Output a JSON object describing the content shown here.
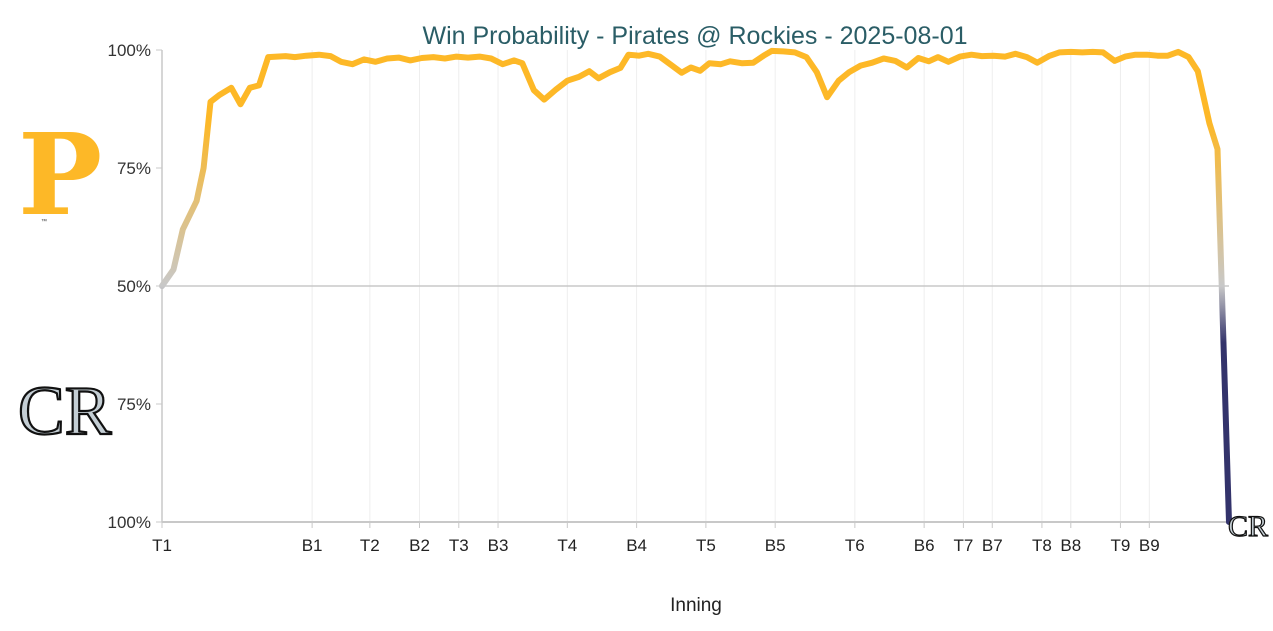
{
  "chart_data": {
    "type": "line",
    "title": "Win Probability - Pirates @ Rockies - 2025-08-01",
    "xlabel": "Inning",
    "ylabel": "",
    "y_tick_labels": [
      "100%",
      "75%",
      "50%",
      "75%",
      "100%"
    ],
    "ylim": [
      -50,
      50
    ],
    "x_tick_labels": [
      {
        "label": "T1",
        "x": 0
      },
      {
        "label": "B1",
        "x": 13
      },
      {
        "label": "T2",
        "x": 18
      },
      {
        "label": "B2",
        "x": 22.3
      },
      {
        "label": "T3",
        "x": 25.7
      },
      {
        "label": "B3",
        "x": 29.1
      },
      {
        "label": "T4",
        "x": 35.1
      },
      {
        "label": "B4",
        "x": 41.1
      },
      {
        "label": "T5",
        "x": 47.1
      },
      {
        "label": "B5",
        "x": 53.1
      },
      {
        "label": "T6",
        "x": 60
      },
      {
        "label": "B6",
        "x": 66
      },
      {
        "label": "T7",
        "x": 69.4
      },
      {
        "label": "B7",
        "x": 71.9
      },
      {
        "label": "T8",
        "x": 76.2
      },
      {
        "label": "B8",
        "x": 78.7
      },
      {
        "label": "T9",
        "x": 83
      },
      {
        "label": "B9",
        "x": 85.5
      }
    ],
    "xlim": [
      0,
      90
    ],
    "grid": "vertical",
    "series": [
      {
        "values": [
          [
            0,
            0
          ],
          [
            1,
            3.5
          ],
          [
            1.8,
            12
          ],
          [
            3,
            18
          ],
          [
            3.6,
            25
          ],
          [
            4.2,
            39
          ],
          [
            5,
            40.5
          ],
          [
            6,
            42
          ],
          [
            6.8,
            38.5
          ],
          [
            7.6,
            42
          ],
          [
            8.4,
            42.5
          ],
          [
            9.2,
            48.5
          ],
          [
            10.7,
            48.7
          ],
          [
            11.5,
            48.5
          ],
          [
            12.5,
            48.8
          ],
          [
            13.6,
            49
          ],
          [
            14.6,
            48.7
          ],
          [
            15.5,
            47.5
          ],
          [
            16.5,
            47
          ],
          [
            17.5,
            48
          ],
          [
            18.5,
            47.5
          ],
          [
            19.5,
            48.2
          ],
          [
            20.5,
            48.4
          ],
          [
            21.5,
            47.8
          ],
          [
            22.5,
            48.3
          ],
          [
            23.5,
            48.5
          ],
          [
            24.5,
            48.2
          ],
          [
            25.5,
            48.6
          ],
          [
            26.5,
            48.4
          ],
          [
            27.5,
            48.6
          ],
          [
            28.5,
            48.2
          ],
          [
            29.5,
            47
          ],
          [
            30.5,
            47.8
          ],
          [
            31.2,
            47.2
          ],
          [
            32.2,
            41.5
          ],
          [
            33.1,
            39.5
          ],
          [
            34.1,
            41.6
          ],
          [
            35.1,
            43.5
          ],
          [
            36.1,
            44.3
          ],
          [
            37,
            45.5
          ],
          [
            37.8,
            44
          ],
          [
            38.8,
            45.3
          ],
          [
            39.7,
            46.2
          ],
          [
            40.4,
            49
          ],
          [
            41.3,
            48.8
          ],
          [
            42.1,
            49.2
          ],
          [
            43.1,
            48.6
          ],
          [
            44,
            47
          ],
          [
            45,
            45.2
          ],
          [
            45.8,
            46.3
          ],
          [
            46.6,
            45.6
          ],
          [
            47.4,
            47.2
          ],
          [
            48.4,
            47
          ],
          [
            49.2,
            47.6
          ],
          [
            50.2,
            47.2
          ],
          [
            51.2,
            47.3
          ],
          [
            52.1,
            48.8
          ],
          [
            52.8,
            49.8
          ],
          [
            53.8,
            49.7
          ],
          [
            54.8,
            49.5
          ],
          [
            55.8,
            48.5
          ],
          [
            56.7,
            45.3
          ],
          [
            57.6,
            40
          ],
          [
            58.6,
            43.5
          ],
          [
            59.5,
            45.3
          ],
          [
            60.5,
            46.7
          ],
          [
            61.5,
            47.3
          ],
          [
            62.5,
            48.2
          ],
          [
            63.5,
            47.7
          ],
          [
            64.5,
            46.3
          ],
          [
            65.5,
            48.3
          ],
          [
            66.4,
            47.6
          ],
          [
            67.2,
            48.5
          ],
          [
            68.1,
            47.5
          ],
          [
            69.1,
            48.6
          ],
          [
            70.1,
            49
          ],
          [
            71,
            48.7
          ],
          [
            72,
            48.8
          ],
          [
            73,
            48.6
          ],
          [
            73.9,
            49.2
          ],
          [
            74.9,
            48.5
          ],
          [
            75.8,
            47.3
          ],
          [
            76.8,
            48.7
          ],
          [
            77.7,
            49.5
          ],
          [
            78.7,
            49.6
          ],
          [
            79.7,
            49.5
          ],
          [
            80.6,
            49.6
          ],
          [
            81.5,
            49.5
          ],
          [
            82.5,
            47.7
          ],
          [
            83.4,
            48.6
          ],
          [
            84.3,
            49
          ],
          [
            85.3,
            49
          ],
          [
            86.2,
            48.8
          ],
          [
            87.1,
            48.8
          ],
          [
            88,
            49.6
          ],
          [
            88.9,
            48.5
          ],
          [
            89.7,
            45.5
          ],
          [
            90.7,
            34.5
          ],
          [
            91.4,
            29
          ],
          [
            92.4,
            -50
          ]
        ]
      }
    ],
    "colors": {
      "pirates": "#FDB827",
      "rockies": "#33336B",
      "neutral": "#C8C8C8",
      "title": "#2a5d66",
      "axis": "#C8C8C8",
      "grid": "#EEEEEE"
    },
    "logos": {
      "home_logo": "CR",
      "away_logo": "P",
      "trademark": "™"
    }
  }
}
